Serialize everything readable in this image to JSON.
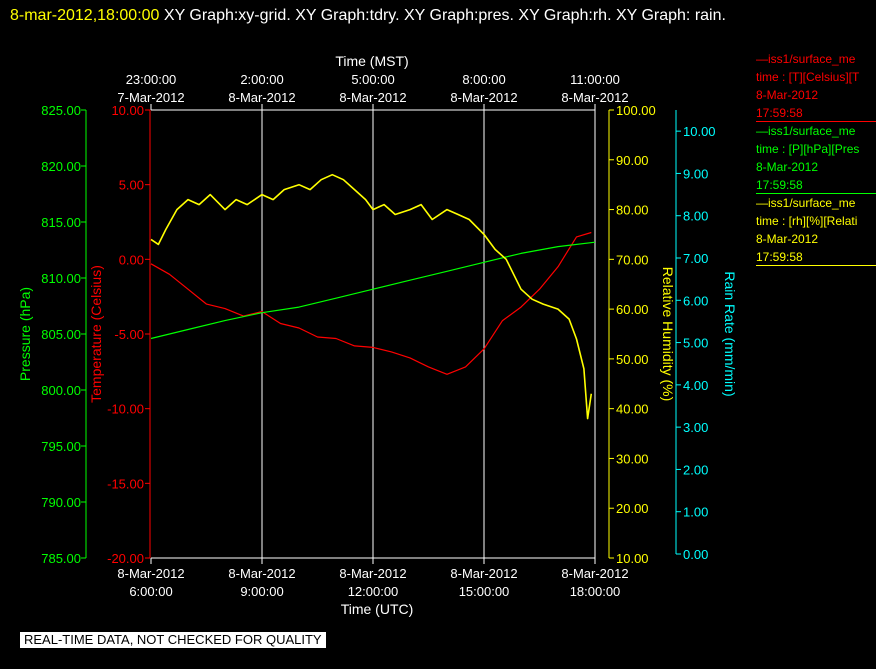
{
  "header": {
    "timestamp": "8-mar-2012,18:00:00",
    "graphs": "XY Graph:xy-grid.  XY Graph:tdry.  XY Graph:pres.  XY Graph:rh.  XY Graph:",
    "graphs_wrap": "rain."
  },
  "legend": {
    "temp": {
      "line1": "—iss1/surface_me",
      "line2": "time : [T][Celsius][T",
      "line3": "8-Mar-2012",
      "line4": "17:59:58",
      "color": "#ff0000"
    },
    "pres": {
      "line1": "—iss1/surface_me",
      "line2": "time : [P][hPa][Pres",
      "line3": "8-Mar-2012",
      "line4": "17:59:58",
      "color": "#00ff00"
    },
    "rh": {
      "line1": "—iss1/surface_me",
      "line2": "time : [rh][%][Relati",
      "line3": "8-Mar-2012",
      "line4": "17:59:58",
      "color": "#ffff00"
    }
  },
  "quality_note": "REAL-TIME DATA, NOT CHECKED FOR QUALITY",
  "chart_data": {
    "type": "line",
    "x_top_label": "Time (MST)",
    "x_bottom_label": "Time (UTC)",
    "x_hours_utc": [
      6,
      9,
      12,
      15,
      18
    ],
    "x_range_utc": [
      6,
      18
    ],
    "top_ticks": [
      {
        "time": "23:00:00",
        "date": "7-Mar-2012",
        "utc": 6
      },
      {
        "time": "2:00:00",
        "date": "8-Mar-2012",
        "utc": 9
      },
      {
        "time": "5:00:00",
        "date": "8-Mar-2012",
        "utc": 12
      },
      {
        "time": "8:00:00",
        "date": "8-Mar-2012",
        "utc": 15
      },
      {
        "time": "11:00:00",
        "date": "8-Mar-2012",
        "utc": 18
      }
    ],
    "bottom_ticks": [
      {
        "date": "8-Mar-2012",
        "time": "6:00:00",
        "utc": 6
      },
      {
        "date": "8-Mar-2012",
        "time": "9:00:00",
        "utc": 9
      },
      {
        "date": "8-Mar-2012",
        "time": "12:00:00",
        "utc": 12
      },
      {
        "date": "8-Mar-2012",
        "time": "15:00:00",
        "utc": 15
      },
      {
        "date": "8-Mar-2012",
        "time": "18:00:00",
        "utc": 18
      }
    ],
    "axes": {
      "pressure": {
        "label": "Pressure (hPa)",
        "range": [
          785,
          825
        ],
        "ticks": [
          "785.00",
          "790.00",
          "795.00",
          "800.00",
          "805.00",
          "810.00",
          "815.00",
          "820.00",
          "825.00"
        ],
        "color": "#00ff00"
      },
      "temperature": {
        "label": "Temperature (Celsius)",
        "range": [
          -20,
          10
        ],
        "ticks": [
          "-20.00",
          "-15.00",
          "-10.00",
          "-5.00",
          "0.00",
          "5.00",
          "10.00"
        ],
        "color": "#ff0000"
      },
      "rh": {
        "label": "Relative Humidity (%)",
        "range": [
          10,
          100
        ],
        "ticks": [
          "10.00",
          "20.00",
          "30.00",
          "40.00",
          "50.00",
          "60.00",
          "70.00",
          "80.00",
          "90.00",
          "100.00"
        ],
        "color": "#ffff00"
      },
      "rain": {
        "label": "Rain Rate (mm/min)",
        "range": [
          0,
          10.5
        ],
        "ticks": [
          "0.00",
          "1.00",
          "2.00",
          "3.00",
          "4.00",
          "5.00",
          "6.00",
          "7.00",
          "8.00",
          "9.00",
          "10.00"
        ],
        "color": "#00ffff"
      }
    },
    "series": [
      {
        "name": "iss1/surface_me [T][Celsius]",
        "axis": "temperature",
        "color": "#ff0000",
        "x": [
          6.0,
          6.5,
          7.0,
          7.5,
          8.0,
          8.5,
          9.0,
          9.5,
          10.0,
          10.5,
          11.0,
          11.5,
          12.0,
          12.5,
          13.0,
          13.5,
          14.0,
          14.5,
          15.0,
          15.5,
          16.0,
          16.5,
          17.0,
          17.5,
          17.9
        ],
        "y": [
          -0.3,
          -1.0,
          -2.0,
          -3.0,
          -3.3,
          -3.8,
          -3.5,
          -4.3,
          -4.6,
          -5.2,
          -5.3,
          -5.8,
          -5.9,
          -6.2,
          -6.6,
          -7.2,
          -7.7,
          -7.2,
          -6.0,
          -4.1,
          -3.2,
          -2.0,
          -0.5,
          1.5,
          1.8
        ]
      },
      {
        "name": "iss1/surface_me [P][hPa][Pres",
        "axis": "pressure",
        "color": "#00ff00",
        "x": [
          6.0,
          7.0,
          8.0,
          9.0,
          10.0,
          11.0,
          12.0,
          13.0,
          14.0,
          15.0,
          16.0,
          17.0,
          18.0
        ],
        "y": [
          804.6,
          805.4,
          806.2,
          806.9,
          807.4,
          808.2,
          809.0,
          809.8,
          810.6,
          811.4,
          812.2,
          812.8,
          813.2
        ]
      },
      {
        "name": "iss1/surface_me [rh][%][Relati",
        "axis": "rh",
        "color": "#ffff00",
        "x": [
          6.0,
          6.2,
          6.4,
          6.7,
          7.0,
          7.3,
          7.6,
          8.0,
          8.3,
          8.6,
          9.0,
          9.3,
          9.6,
          10.0,
          10.3,
          10.6,
          10.9,
          11.2,
          11.5,
          11.8,
          12.0,
          12.3,
          12.6,
          13.0,
          13.3,
          13.6,
          14.0,
          14.3,
          14.6,
          15.0,
          15.3,
          15.6,
          16.0,
          16.3,
          16.6,
          17.0,
          17.3,
          17.5,
          17.7,
          17.8,
          17.9
        ],
        "y": [
          74,
          73,
          76,
          80,
          82,
          81,
          83,
          80,
          82,
          81,
          83,
          82,
          84,
          85,
          84,
          86,
          87,
          86,
          84,
          82,
          80,
          81,
          79,
          80,
          81,
          78,
          80,
          79,
          78,
          75,
          72,
          70,
          64,
          62,
          61,
          60,
          58,
          54,
          48,
          38,
          43
        ]
      }
    ]
  }
}
